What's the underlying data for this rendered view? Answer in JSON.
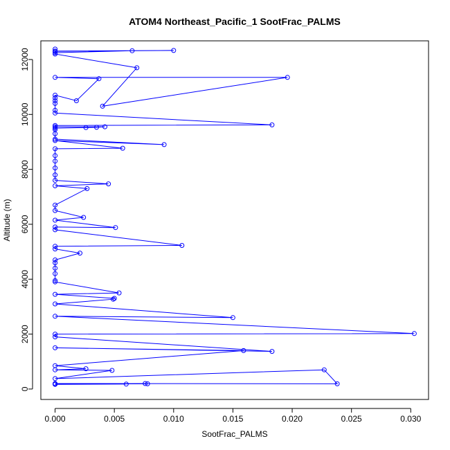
{
  "chart_data": {
    "type": "line",
    "title": "ATOM4 Northeast_Pacific_1 SootFrac_PALMS",
    "xlabel": "SootFrac_PALMS",
    "ylabel": "Altitude (m)",
    "xlim": [
      -0.0012,
      0.0315
    ],
    "ylim": [
      -380,
      12680
    ],
    "xticks": [
      0.0,
      0.005,
      0.01,
      0.015,
      0.02,
      0.025,
      0.03
    ],
    "xtick_labels": [
      "0.000",
      "0.005",
      "0.010",
      "0.015",
      "0.020",
      "0.025",
      "0.030"
    ],
    "yticks": [
      0,
      2000,
      4000,
      6000,
      8000,
      10000,
      12000
    ],
    "ytick_labels": [
      "0",
      "2000",
      "4000",
      "6000",
      "8000",
      "10000",
      "12000"
    ],
    "grid": false,
    "series": [
      {
        "color": "#0000ff",
        "marker": "open-circle",
        "points": [
          [
            0.0,
            12300
          ],
          [
            0.01,
            12330
          ],
          [
            0.0,
            12310
          ],
          [
            0.0065,
            12320
          ],
          [
            0.0,
            12250
          ],
          [
            0.0,
            12380
          ],
          [
            0.0,
            12200
          ],
          [
            0.0069,
            11700
          ],
          [
            0.004,
            10300
          ],
          [
            0.0196,
            11350
          ],
          [
            0.0,
            11350
          ],
          [
            0.0037,
            11300
          ],
          [
            0.0018,
            10500
          ],
          [
            0.0,
            10700
          ],
          [
            0.0,
            10600
          ],
          [
            0.0,
            10500
          ],
          [
            0.0,
            10400
          ],
          [
            0.0,
            10150
          ],
          [
            0.0,
            10050
          ],
          [
            0.0183,
            9620
          ],
          [
            0.0,
            9600
          ],
          [
            0.0,
            9550
          ],
          [
            0.0042,
            9550
          ],
          [
            0.0035,
            9530
          ],
          [
            0.0026,
            9520
          ],
          [
            0.0,
            9500
          ],
          [
            0.0,
            9450
          ],
          [
            0.0,
            9300
          ],
          [
            0.0,
            9100
          ],
          [
            0.0092,
            8900
          ],
          [
            0.0,
            9050
          ],
          [
            0.0057,
            8770
          ],
          [
            0.0,
            8750
          ],
          [
            0.0,
            8500
          ],
          [
            0.0,
            8300
          ],
          [
            0.0,
            8050
          ],
          [
            0.0,
            7800
          ],
          [
            0.0,
            7600
          ],
          [
            0.0045,
            7470
          ],
          [
            0.0,
            7400
          ],
          [
            0.0027,
            7300
          ],
          [
            0.0,
            6700
          ],
          [
            0.0,
            6500
          ],
          [
            0.0024,
            6250
          ],
          [
            0.0,
            6150
          ],
          [
            0.0051,
            5880
          ],
          [
            0.0,
            5900
          ],
          [
            0.0,
            5800
          ],
          [
            0.0107,
            5230
          ],
          [
            0.0,
            5200
          ],
          [
            0.0,
            5100
          ],
          [
            0.0021,
            4950
          ],
          [
            0.0,
            4700
          ],
          [
            0.0,
            4600
          ],
          [
            0.0,
            4400
          ],
          [
            0.0,
            4200
          ],
          [
            0.0,
            3950
          ],
          [
            0.0,
            3900
          ],
          [
            0.0054,
            3500
          ],
          [
            0.0,
            3450
          ],
          [
            0.005,
            3300
          ],
          [
            0.0049,
            3270
          ],
          [
            0.0,
            3100
          ],
          [
            0.015,
            2600
          ],
          [
            0.0,
            2650
          ],
          [
            0.0303,
            2020
          ],
          [
            0.0,
            2000
          ],
          [
            0.0,
            1900
          ],
          [
            0.0183,
            1370
          ],
          [
            0.0,
            1500
          ],
          [
            0.0159,
            1400
          ],
          [
            0.0,
            850
          ],
          [
            0.0026,
            740
          ],
          [
            0.0,
            700
          ],
          [
            0.0048,
            680
          ],
          [
            0.0,
            380
          ],
          [
            0.0227,
            700
          ],
          [
            0.0238,
            190
          ],
          [
            0.0,
            200
          ],
          [
            0.0078,
            190
          ],
          [
            0.0,
            180
          ],
          [
            0.0076,
            200
          ],
          [
            0.0,
            170
          ],
          [
            0.006,
            180
          ],
          [
            0.0,
            190
          ]
        ]
      }
    ]
  }
}
